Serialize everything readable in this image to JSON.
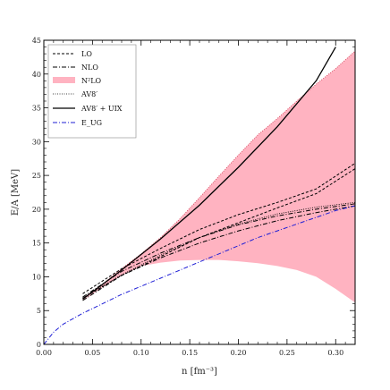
{
  "chart_data": {
    "type": "line",
    "xlabel": "n [fm⁻³]",
    "ylabel": "E/A [MeV]",
    "xlim": [
      0,
      0.32
    ],
    "ylim": [
      0,
      45
    ],
    "xticks": [
      "0.00",
      "0.05",
      "0.10",
      "0.15",
      "0.20",
      "0.25",
      "0.30"
    ],
    "yticks": [
      "0",
      "5",
      "10",
      "15",
      "20",
      "25",
      "30",
      "35",
      "40",
      "45"
    ],
    "legend_position": "top-left",
    "legend": [
      {
        "label": "LO",
        "style": "dashed-black"
      },
      {
        "label": "NLO",
        "style": "dashdot-black"
      },
      {
        "label": "N²LO",
        "style": "pink-band"
      },
      {
        "label": "AV8′",
        "style": "dotted-black"
      },
      {
        "label": "AV8′ + UIX",
        "style": "solid-black"
      },
      {
        "label": "E_UG",
        "style": "dashdot-blue"
      }
    ],
    "colors": {
      "band": "#ffb3c1",
      "band_edge": "#d0304a",
      "ug": "#1f1fd6",
      "black": "#000000"
    },
    "series": [
      {
        "name": "LO",
        "x": [
          0.04,
          0.08,
          0.12,
          0.16,
          0.2,
          0.24,
          0.28,
          0.32
        ],
        "upper": [
          7.5,
          11.2,
          14.2,
          17.0,
          19.2,
          21.0,
          23.0,
          26.8
        ],
        "lower": [
          6.8,
          10.2,
          13.0,
          15.8,
          18.0,
          20.2,
          22.3,
          26.0
        ]
      },
      {
        "name": "NLO",
        "x": [
          0.04,
          0.08,
          0.12,
          0.16,
          0.2,
          0.24,
          0.28,
          0.32
        ],
        "upper": [
          7.0,
          10.8,
          13.5,
          15.8,
          17.7,
          19.0,
          20.0,
          20.8
        ],
        "lower": [
          6.5,
          10.2,
          12.8,
          15.0,
          16.8,
          18.3,
          19.5,
          20.5
        ]
      },
      {
        "name": "N²LO",
        "x": [
          0.04,
          0.06,
          0.08,
          0.1,
          0.12,
          0.14,
          0.16,
          0.18,
          0.2,
          0.22,
          0.24,
          0.26,
          0.28,
          0.3,
          0.32
        ],
        "upper": [
          6.8,
          8.9,
          11.2,
          13.4,
          15.8,
          18.6,
          21.7,
          24.9,
          28.0,
          31.0,
          33.4,
          36.0,
          38.5,
          40.8,
          43.4
        ],
        "lower": [
          6.5,
          8.4,
          10.2,
          11.6,
          12.1,
          12.4,
          12.5,
          12.5,
          12.3,
          12.0,
          11.6,
          11.0,
          10.0,
          8.2,
          6.2
        ]
      },
      {
        "name": "AV8′",
        "x": [
          0.04,
          0.08,
          0.12,
          0.16,
          0.2,
          0.24,
          0.28,
          0.32
        ],
        "values": [
          6.9,
          10.3,
          13.2,
          15.8,
          17.8,
          19.3,
          20.3,
          21.0
        ]
      },
      {
        "name": "AV8′ + UIX",
        "x": [
          0.04,
          0.08,
          0.12,
          0.16,
          0.2,
          0.24,
          0.28,
          0.3
        ],
        "values": [
          6.7,
          11.0,
          15.6,
          20.6,
          26.2,
          32.2,
          39.0,
          44.0
        ]
      },
      {
        "name": "E_UG",
        "x": [
          0.0,
          0.01,
          0.02,
          0.04,
          0.06,
          0.08,
          0.1,
          0.12,
          0.14,
          0.16,
          0.18,
          0.2,
          0.22,
          0.24,
          0.26,
          0.28,
          0.3,
          0.32
        ],
        "values": [
          0.0,
          1.8,
          3.0,
          4.6,
          6.0,
          7.4,
          8.6,
          9.8,
          11.0,
          12.2,
          13.4,
          14.6,
          15.8,
          16.8,
          17.8,
          18.8,
          19.8,
          20.5
        ]
      }
    ]
  }
}
